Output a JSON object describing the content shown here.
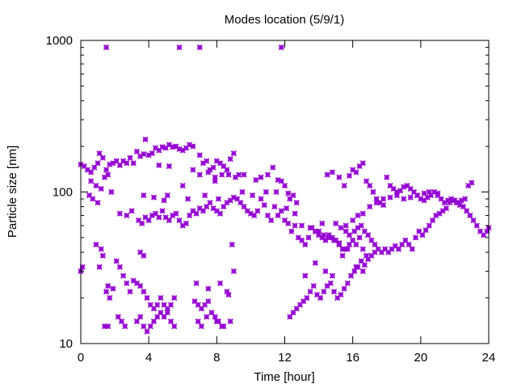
{
  "chart_data": {
    "type": "scatter",
    "title": "Modes location (5/9/1)",
    "xlabel": "Time [hour]",
    "ylabel": "Particle size [nm]",
    "xlim": [
      0,
      24
    ],
    "ylim": [
      10,
      1000
    ],
    "yscale": "log",
    "xticks": [
      "0",
      "4",
      "8",
      "12",
      "16",
      "20",
      "24"
    ],
    "yticks": [
      "10",
      "100",
      "1000"
    ],
    "grid": false,
    "marker_color": "#9400d3",
    "marker": "star",
    "points": [
      [
        1.5,
        900
      ],
      [
        5.8,
        900
      ],
      [
        7.0,
        900
      ],
      [
        11.8,
        900
      ],
      [
        0.0,
        152
      ],
      [
        0.2,
        148
      ],
      [
        0.4,
        140
      ],
      [
        0.6,
        135
      ],
      [
        0.8,
        145
      ],
      [
        1.0,
        155
      ],
      [
        1.1,
        180
      ],
      [
        1.3,
        168
      ],
      [
        1.5,
        140
      ],
      [
        1.7,
        152
      ],
      [
        1.9,
        155
      ],
      [
        2.1,
        160
      ],
      [
        2.3,
        150
      ],
      [
        2.5,
        160
      ],
      [
        2.7,
        155
      ],
      [
        2.9,
        168
      ],
      [
        3.1,
        155
      ],
      [
        3.3,
        185
      ],
      [
        3.5,
        172
      ],
      [
        3.7,
        178
      ],
      [
        3.8,
        222
      ],
      [
        4.0,
        175
      ],
      [
        4.2,
        180
      ],
      [
        4.4,
        195
      ],
      [
        4.6,
        188
      ],
      [
        4.8,
        198
      ],
      [
        5.0,
        195
      ],
      [
        5.2,
        205
      ],
      [
        5.4,
        198
      ],
      [
        5.6,
        200
      ],
      [
        5.8,
        192
      ],
      [
        6.0,
        188
      ],
      [
        6.2,
        195
      ],
      [
        6.4,
        205
      ],
      [
        6.6,
        200
      ],
      [
        7.0,
        175
      ],
      [
        7.2,
        155
      ],
      [
        7.4,
        160
      ],
      [
        7.6,
        140
      ],
      [
        7.8,
        145
      ],
      [
        8.0,
        160
      ],
      [
        8.2,
        155
      ],
      [
        8.4,
        148
      ],
      [
        8.6,
        140
      ],
      [
        8.8,
        165
      ],
      [
        9.0,
        180
      ],
      [
        7.5,
        135
      ],
      [
        7.9,
        125
      ],
      [
        8.3,
        130
      ],
      [
        8.7,
        130
      ],
      [
        9.1,
        125
      ],
      [
        9.3,
        130
      ],
      [
        9.6,
        130
      ],
      [
        10.3,
        120
      ],
      [
        10.6,
        125
      ],
      [
        11.0,
        130
      ],
      [
        11.3,
        145
      ],
      [
        11.6,
        120
      ],
      [
        11.8,
        118
      ],
      [
        12.0,
        110
      ],
      [
        12.2,
        98
      ],
      [
        12.3,
        90
      ],
      [
        12.5,
        95
      ],
      [
        12.7,
        85
      ],
      [
        0.6,
        118
      ],
      [
        0.9,
        110
      ],
      [
        1.2,
        105
      ],
      [
        1.4,
        125
      ],
      [
        1.6,
        130
      ],
      [
        4.6,
        150
      ],
      [
        5.2,
        148
      ],
      [
        6.0,
        110
      ],
      [
        6.6,
        140
      ],
      [
        7.0,
        130
      ],
      [
        7.9,
        118
      ],
      [
        0.5,
        95
      ],
      [
        0.7,
        90
      ],
      [
        1.0,
        85
      ],
      [
        1.8,
        100
      ],
      [
        2.3,
        72
      ],
      [
        2.7,
        70
      ],
      [
        3.0,
        75
      ],
      [
        3.4,
        65
      ],
      [
        3.6,
        62
      ],
      [
        3.8,
        68
      ],
      [
        4.0,
        65
      ],
      [
        4.2,
        70
      ],
      [
        4.4,
        72
      ],
      [
        4.6,
        68
      ],
      [
        4.8,
        75
      ],
      [
        5.0,
        68
      ],
      [
        5.2,
        65
      ],
      [
        5.4,
        70
      ],
      [
        5.6,
        72
      ],
      [
        5.8,
        65
      ],
      [
        6.0,
        60
      ],
      [
        6.2,
        62
      ],
      [
        6.4,
        70
      ],
      [
        6.6,
        75
      ],
      [
        6.8,
        72
      ],
      [
        7.0,
        78
      ],
      [
        7.2,
        75
      ],
      [
        7.4,
        80
      ],
      [
        7.6,
        85
      ],
      [
        7.8,
        78
      ],
      [
        8.0,
        75
      ],
      [
        8.2,
        72
      ],
      [
        8.4,
        80
      ],
      [
        8.6,
        85
      ],
      [
        8.8,
        88
      ],
      [
        9.0,
        92
      ],
      [
        9.2,
        90
      ],
      [
        9.4,
        85
      ],
      [
        9.6,
        80
      ],
      [
        9.8,
        75
      ],
      [
        10.0,
        72
      ],
      [
        10.2,
        70
      ],
      [
        10.4,
        75
      ],
      [
        10.6,
        90
      ],
      [
        10.8,
        82
      ],
      [
        11.0,
        70
      ],
      [
        11.2,
        65
      ],
      [
        11.4,
        80
      ],
      [
        11.6,
        70
      ],
      [
        11.8,
        75
      ],
      [
        12.0,
        65
      ],
      [
        12.2,
        62
      ],
      [
        12.4,
        55
      ],
      [
        12.6,
        60
      ],
      [
        12.8,
        50
      ],
      [
        13.0,
        48
      ],
      [
        13.2,
        45
      ],
      [
        13.4,
        50
      ],
      [
        13.6,
        58
      ],
      [
        13.8,
        55
      ],
      [
        14.0,
        52
      ],
      [
        14.2,
        50
      ],
      [
        14.4,
        48
      ],
      [
        14.6,
        52
      ],
      [
        14.8,
        50
      ],
      [
        15.0,
        48
      ],
      [
        15.2,
        45
      ],
      [
        15.4,
        42
      ],
      [
        15.6,
        55
      ],
      [
        15.8,
        52
      ],
      [
        16.0,
        48
      ],
      [
        16.2,
        45
      ],
      [
        16.4,
        50
      ],
      [
        16.6,
        42
      ],
      [
        16.8,
        38
      ],
      [
        3.7,
        95
      ],
      [
        4.3,
        92
      ],
      [
        4.9,
        88
      ],
      [
        5.1,
        95
      ],
      [
        6.3,
        90
      ],
      [
        7.3,
        95
      ],
      [
        8.1,
        90
      ],
      [
        9.5,
        100
      ],
      [
        10.1,
        95
      ],
      [
        10.9,
        100
      ],
      [
        11.5,
        100
      ],
      [
        12.1,
        78
      ],
      [
        12.6,
        72
      ],
      [
        14.0,
        55
      ],
      [
        14.3,
        52
      ],
      [
        14.6,
        50
      ],
      [
        14.9,
        48
      ],
      [
        15.2,
        46
      ],
      [
        15.5,
        42
      ],
      [
        15.8,
        45
      ],
      [
        16.1,
        55
      ],
      [
        16.3,
        58
      ],
      [
        16.5,
        60
      ],
      [
        16.7,
        55
      ],
      [
        16.9,
        52
      ],
      [
        17.1,
        48
      ],
      [
        17.3,
        45
      ],
      [
        17.5,
        42
      ],
      [
        17.7,
        40
      ],
      [
        17.9,
        42
      ],
      [
        18.1,
        40
      ],
      [
        18.3,
        42
      ],
      [
        18.5,
        44
      ],
      [
        18.7,
        42
      ],
      [
        18.9,
        45
      ],
      [
        19.1,
        48
      ],
      [
        19.3,
        45
      ],
      [
        19.5,
        42
      ],
      [
        19.7,
        50
      ],
      [
        19.9,
        55
      ],
      [
        20.1,
        52
      ],
      [
        20.3,
        56
      ],
      [
        20.5,
        60
      ],
      [
        20.7,
        65
      ],
      [
        20.9,
        70
      ],
      [
        21.1,
        72
      ],
      [
        21.3,
        75
      ],
      [
        21.5,
        78
      ],
      [
        21.7,
        85
      ],
      [
        21.9,
        88
      ],
      [
        22.1,
        85
      ],
      [
        22.3,
        82
      ],
      [
        22.5,
        80
      ],
      [
        22.7,
        75
      ],
      [
        22.9,
        70
      ],
      [
        23.1,
        65
      ],
      [
        23.3,
        60
      ],
      [
        23.5,
        55
      ],
      [
        23.7,
        52
      ],
      [
        23.9,
        55
      ],
      [
        24.0,
        58
      ],
      [
        15.2,
        125
      ],
      [
        15.5,
        110
      ],
      [
        15.8,
        128
      ],
      [
        16.0,
        140
      ],
      [
        16.2,
        135
      ],
      [
        16.4,
        148
      ],
      [
        16.6,
        155
      ],
      [
        16.8,
        118
      ],
      [
        17.0,
        110
      ],
      [
        17.2,
        100
      ],
      [
        17.4,
        90
      ],
      [
        17.6,
        85
      ],
      [
        17.8,
        82
      ],
      [
        18.0,
        125
      ],
      [
        18.2,
        110
      ],
      [
        18.4,
        105
      ],
      [
        18.6,
        100
      ],
      [
        18.8,
        102
      ],
      [
        19.0,
        108
      ],
      [
        19.2,
        110
      ],
      [
        19.4,
        105
      ],
      [
        19.6,
        100
      ],
      [
        19.8,
        95
      ],
      [
        20.0,
        90
      ],
      [
        20.2,
        88
      ],
      [
        20.4,
        92
      ],
      [
        20.6,
        95
      ],
      [
        20.8,
        100
      ],
      [
        21.0,
        98
      ],
      [
        21.2,
        90
      ],
      [
        21.4,
        85
      ],
      [
        21.6,
        88
      ],
      [
        21.8,
        90
      ],
      [
        22.0,
        88
      ],
      [
        22.2,
        85
      ],
      [
        22.4,
        88
      ],
      [
        22.6,
        90
      ],
      [
        22.8,
        110
      ],
      [
        23.0,
        115
      ],
      [
        14.5,
        130
      ],
      [
        14.8,
        135
      ],
      [
        13.0,
        60
      ],
      [
        13.5,
        58
      ],
      [
        13.8,
        55
      ],
      [
        14.2,
        62
      ],
      [
        15.0,
        62
      ],
      [
        15.3,
        58
      ],
      [
        15.6,
        60
      ],
      [
        16.0,
        65
      ],
      [
        16.3,
        70
      ],
      [
        16.6,
        72
      ],
      [
        17.0,
        80
      ],
      [
        17.4,
        85
      ],
      [
        17.8,
        90
      ],
      [
        18.2,
        92
      ],
      [
        18.6,
        95
      ],
      [
        19.0,
        90
      ],
      [
        19.4,
        92
      ],
      [
        19.8,
        95
      ],
      [
        20.2,
        98
      ],
      [
        20.5,
        100
      ],
      [
        21.0,
        95
      ],
      [
        0.0,
        30
      ],
      [
        0.1,
        32
      ],
      [
        0.9,
        45
      ],
      [
        1.2,
        42
      ],
      [
        1.3,
        38
      ],
      [
        1.1,
        32
      ],
      [
        1.5,
        22
      ],
      [
        1.6,
        24
      ],
      [
        1.7,
        20
      ],
      [
        1.9,
        23
      ],
      [
        2.1,
        35
      ],
      [
        2.3,
        32
      ],
      [
        2.5,
        28
      ],
      [
        2.7,
        25
      ],
      [
        2.9,
        22
      ],
      [
        3.1,
        26
      ],
      [
        3.3,
        25
      ],
      [
        3.5,
        24
      ],
      [
        3.7,
        22
      ],
      [
        3.9,
        20
      ],
      [
        4.1,
        18
      ],
      [
        4.3,
        17
      ],
      [
        4.5,
        18
      ],
      [
        4.7,
        20
      ],
      [
        4.9,
        18
      ],
      [
        5.1,
        17
      ],
      [
        5.3,
        18
      ],
      [
        5.5,
        20
      ],
      [
        6.7,
        19
      ],
      [
        6.9,
        18
      ],
      [
        7.1,
        17
      ],
      [
        7.3,
        18
      ],
      [
        7.5,
        19
      ],
      [
        7.9,
        15
      ],
      [
        8.1,
        14
      ],
      [
        8.3,
        13
      ],
      [
        8.7,
        21
      ],
      [
        9.0,
        30
      ],
      [
        1.4,
        13
      ],
      [
        1.6,
        13
      ],
      [
        2.2,
        15
      ],
      [
        2.4,
        14
      ],
      [
        2.6,
        13
      ],
      [
        3.3,
        14
      ],
      [
        3.5,
        15
      ],
      [
        3.7,
        13
      ],
      [
        3.9,
        12
      ],
      [
        4.1,
        13
      ],
      [
        4.3,
        14
      ],
      [
        4.5,
        15
      ],
      [
        4.7,
        16
      ],
      [
        4.9,
        15
      ],
      [
        5.1,
        16
      ],
      [
        5.3,
        14
      ],
      [
        5.5,
        13
      ],
      [
        6.9,
        14
      ],
      [
        7.1,
        13
      ],
      [
        7.4,
        15
      ],
      [
        7.7,
        16
      ],
      [
        8.0,
        14
      ],
      [
        8.4,
        13
      ],
      [
        8.8,
        14
      ],
      [
        3.5,
        40
      ],
      [
        3.7,
        38
      ],
      [
        6.8,
        25
      ],
      [
        7.5,
        23
      ],
      [
        8.2,
        25
      ],
      [
        8.6,
        22
      ],
      [
        8.9,
        45
      ],
      [
        12.3,
        15
      ],
      [
        12.5,
        16
      ],
      [
        12.7,
        17
      ],
      [
        12.9,
        18
      ],
      [
        13.1,
        19
      ],
      [
        13.3,
        20
      ],
      [
        13.5,
        22
      ],
      [
        13.7,
        24
      ],
      [
        13.9,
        21
      ],
      [
        14.1,
        20
      ],
      [
        14.3,
        22
      ],
      [
        14.5,
        24
      ],
      [
        14.7,
        25
      ],
      [
        14.9,
        22
      ],
      [
        15.1,
        20
      ],
      [
        15.3,
        21
      ],
      [
        15.5,
        23
      ],
      [
        15.7,
        25
      ],
      [
        15.9,
        28
      ],
      [
        16.1,
        30
      ],
      [
        16.3,
        32
      ],
      [
        16.5,
        35
      ],
      [
        16.7,
        33
      ],
      [
        16.9,
        36
      ],
      [
        17.1,
        38
      ],
      [
        17.3,
        40
      ],
      [
        13.2,
        28
      ],
      [
        13.8,
        34
      ],
      [
        14.4,
        30
      ],
      [
        14.8,
        28
      ],
      [
        15.4,
        38
      ],
      [
        15.7,
        42
      ],
      [
        16.2,
        32
      ],
      [
        16.6,
        30
      ]
    ]
  }
}
